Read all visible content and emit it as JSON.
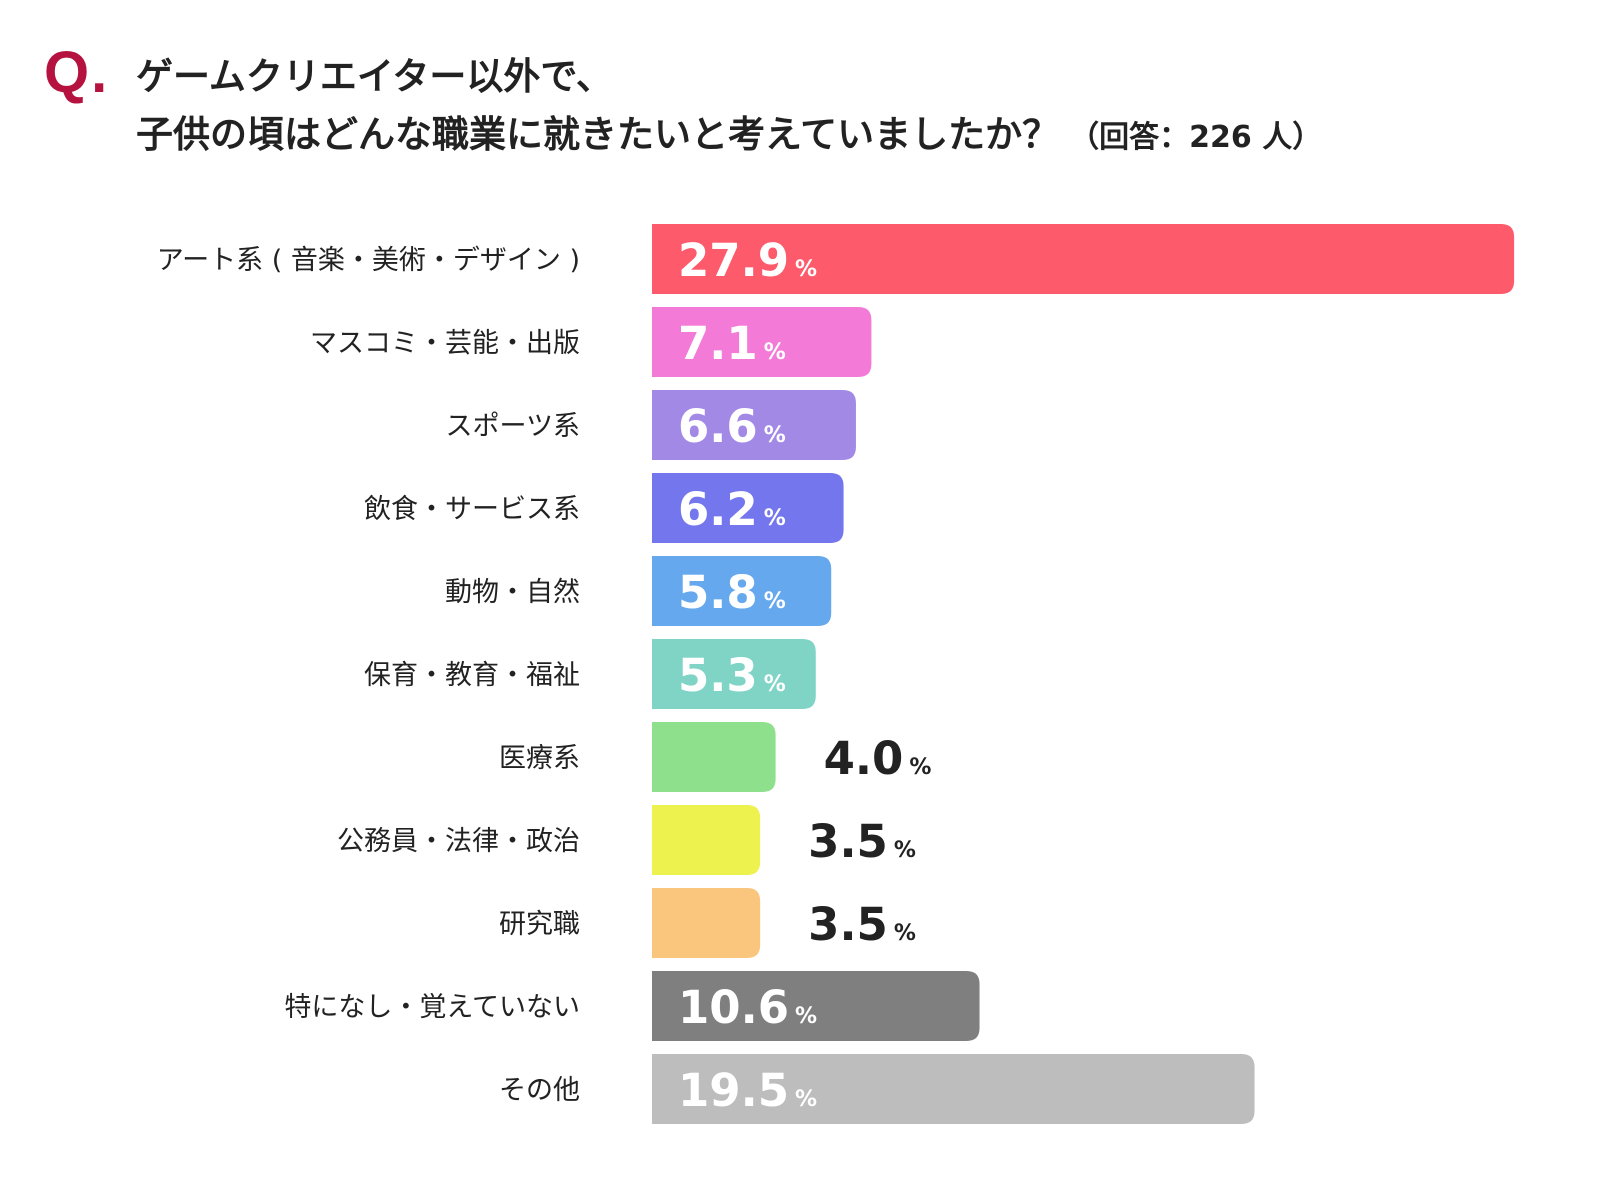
{
  "header": {
    "q_mark": "Q.",
    "title_line1": "ゲームクリエイター以外で、",
    "title_line2": "子供の頃はどんな職業に就きたいと考えていましたか？",
    "respondents_note": "（回答：226 人）"
  },
  "chart_data": {
    "type": "bar",
    "orientation": "horizontal",
    "unit": "%",
    "categories": [
      "アート系 ( 音楽・美術・デザイン )",
      "マスコミ・芸能・出版",
      "スポーツ系",
      "飲食・サービス系",
      "動物・自然",
      "保育・教育・福祉",
      "医療系",
      "公務員・法律・政治",
      "研究職",
      "特になし・覚えていない",
      "その他"
    ],
    "values": [
      27.9,
      7.1,
      6.6,
      6.2,
      5.8,
      5.3,
      4.0,
      3.5,
      3.5,
      10.6,
      19.5
    ],
    "value_labels": [
      "27.9",
      "7.1",
      "6.6",
      "6.2",
      "5.8",
      "5.3",
      "4.0",
      "3.5",
      "3.5",
      "10.6",
      "19.5"
    ],
    "colors": [
      "#fd5a6b",
      "#f37ad6",
      "#a389e6",
      "#7376ed",
      "#66a8ed",
      "#7fd4c6",
      "#8ee08c",
      "#eef24f",
      "#fac67e",
      "#7f7f7f",
      "#bdbdbd"
    ],
    "label_colors": [
      "#ffffff",
      "#ffffff",
      "#ffffff",
      "#ffffff",
      "#ffffff",
      "#ffffff",
      "#222222",
      "#222222",
      "#222222",
      "#ffffff",
      "#ffffff"
    ],
    "xlim": [
      0,
      28
    ],
    "grid": false,
    "legend": "none"
  }
}
